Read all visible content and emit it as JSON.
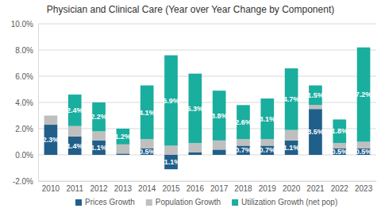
{
  "chart_data": {
    "type": "bar",
    "title": "Physician and Clinical Care (Year over Year Change by Component)",
    "stacked": true,
    "data_labels": true,
    "grid": true,
    "legend": "bottom",
    "categories": [
      "2010",
      "2011",
      "2012",
      "2013",
      "2014",
      "2015",
      "2016",
      "2017",
      "2018",
      "2019",
      "2020",
      "2021",
      "2022",
      "2023"
    ],
    "series": [
      {
        "name": "Prices Growth",
        "color": "#215f8b",
        "values": [
          2.3,
          1.4,
          1.1,
          0.1,
          0.5,
          -1.1,
          0.2,
          0.4,
          0.7,
          0.7,
          1.1,
          3.5,
          0.5,
          0.5
        ],
        "value_labels": [
          "2.3%",
          "1.4%",
          "1.1%",
          null,
          "0.5%",
          "-1.1%",
          null,
          null,
          "0.7%",
          "0.7%",
          "1.1%",
          "3.5%",
          "0.5%",
          "0.5%"
        ]
      },
      {
        "name": "Population Growth",
        "color": "#bfbfbf",
        "values": [
          0.7,
          0.8,
          0.7,
          0.7,
          0.7,
          0.7,
          0.7,
          0.7,
          0.5,
          0.5,
          0.8,
          0.3,
          0.4,
          0.5
        ]
      },
      {
        "name": "Utilization Growth (net pop)",
        "color": "#1aae9f",
        "values": [
          0,
          2.4,
          2.2,
          1.2,
          4.1,
          6.9,
          5.3,
          3.8,
          2.6,
          3.1,
          4.7,
          1.5,
          1.8,
          7.2
        ],
        "value_labels": [
          null,
          "2.4%",
          "2.2%",
          "1.2%",
          "4.1%",
          "6.9%",
          "5.3%",
          "3.8%",
          "2.6%",
          "3.1%",
          "4.7%",
          "1.5%",
          "1.8%",
          "7.2%"
        ]
      }
    ],
    "ylim": [
      -2,
      10
    ],
    "yticks": [
      {
        "value": -2,
        "label": "-2.0%"
      },
      {
        "value": 0,
        "label": "0.0%"
      },
      {
        "value": 2,
        "label": "2.0%"
      },
      {
        "value": 4,
        "label": "4.0%"
      },
      {
        "value": 6,
        "label": "6.0%"
      },
      {
        "value": 8,
        "label": "8.0%"
      },
      {
        "value": 10,
        "label": "10.0%"
      }
    ]
  }
}
